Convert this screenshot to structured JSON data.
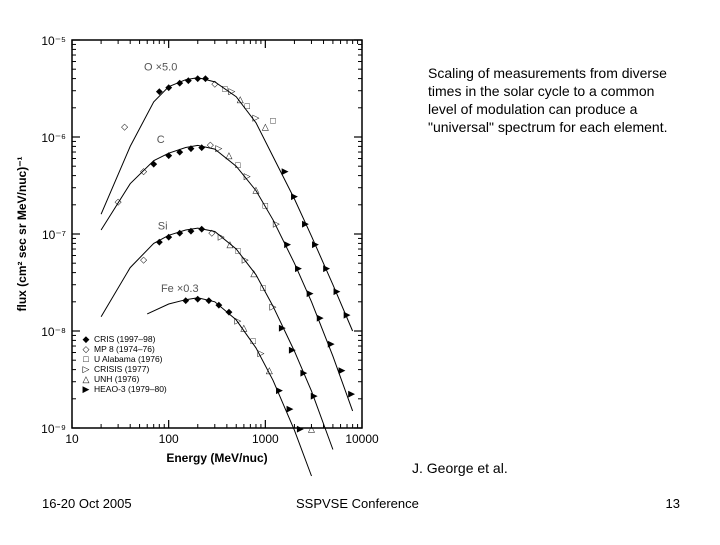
{
  "slide": {
    "caption": "Scaling of measurements from diverse times in the solar cycle to a common level of modulation can produce a \"universal\" spectrum for each element.",
    "credit": "J. George et al.",
    "footer": {
      "date": "16-20 Oct 2005",
      "conference": "SSPVSE Conference",
      "page": "13"
    }
  },
  "chart_data": {
    "type": "scatter",
    "xlabel": "Energy (MeV/nuc)",
    "ylabel": "flux (cm² sec sr MeV/nuc)⁻¹",
    "x_scale": "log",
    "y_scale": "log",
    "xlim": [
      10,
      10000
    ],
    "ylim": [
      1e-09,
      1e-05
    ],
    "x_ticks": [
      "10",
      "100",
      "1000",
      "10000"
    ],
    "y_ticks": [
      "10⁻⁵",
      "10⁻⁶",
      "10⁻⁷",
      "10⁻⁸",
      "10⁻⁹"
    ],
    "legend": {
      "placement": "bottom-left",
      "entries": [
        {
          "symbol": "◆",
          "label": "CRIS (1997–98)"
        },
        {
          "symbol": "◇",
          "label": "MP 8 (1974–76)"
        },
        {
          "symbol": "□",
          "label": "U Alabama (1976)"
        },
        {
          "symbol": "▷",
          "label": "CRISIS (1977)"
        },
        {
          "symbol": "△",
          "label": "UNH (1976)"
        },
        {
          "symbol": "▶",
          "label": "HEAO-3 (1979–80)"
        }
      ]
    },
    "series": [
      {
        "name": "O ×5.0",
        "color": "#000000",
        "curve": [
          [
            20,
            1.6e-07
          ],
          [
            40,
            8e-07
          ],
          [
            70,
            2.3e-06
          ],
          [
            100,
            3.3e-06
          ],
          [
            150,
            3.9e-06
          ],
          [
            200,
            4.1e-06
          ],
          [
            300,
            3.7e-06
          ],
          [
            500,
            2.6e-06
          ],
          [
            800,
            1.4e-06
          ],
          [
            1200,
            6.3e-07
          ],
          [
            2000,
            2.3e-07
          ],
          [
            3000,
            9.5e-08
          ],
          [
            5000,
            3e-08
          ],
          [
            8000,
            1e-08
          ]
        ],
        "points": [
          {
            "x": 35,
            "y": 1.3e-06,
            "m": "◇"
          },
          {
            "x": 80,
            "y": 3e-06,
            "m": "◆"
          },
          {
            "x": 100,
            "y": 3.3e-06,
            "m": "◆"
          },
          {
            "x": 130,
            "y": 3.7e-06,
            "m": "◆"
          },
          {
            "x": 160,
            "y": 3.9e-06,
            "m": "◆"
          },
          {
            "x": 200,
            "y": 4.1e-06,
            "m": "◆"
          },
          {
            "x": 240,
            "y": 4.1e-06,
            "m": "◆"
          },
          {
            "x": 300,
            "y": 3.6e-06,
            "m": "◇"
          },
          {
            "x": 380,
            "y": 3.2e-06,
            "m": "□"
          },
          {
            "x": 450,
            "y": 3e-06,
            "m": "▷"
          },
          {
            "x": 550,
            "y": 2.5e-06,
            "m": "△"
          },
          {
            "x": 650,
            "y": 2.1e-06,
            "m": "□"
          },
          {
            "x": 800,
            "y": 1.6e-06,
            "m": "▷"
          },
          {
            "x": 1000,
            "y": 1.3e-06,
            "m": "△"
          },
          {
            "x": 1200,
            "y": 1.5e-06,
            "m": "□"
          },
          {
            "x": 1600,
            "y": 4.5e-07,
            "m": "▶"
          },
          {
            "x": 2000,
            "y": 2.5e-07,
            "m": "▶"
          },
          {
            "x": 2600,
            "y": 1.3e-07,
            "m": "▶"
          },
          {
            "x": 3300,
            "y": 8e-08,
            "m": "▶"
          },
          {
            "x": 4300,
            "y": 4.5e-08,
            "m": "▶"
          },
          {
            "x": 5500,
            "y": 2.6e-08,
            "m": "▶"
          },
          {
            "x": 7000,
            "y": 1.5e-08,
            "m": "▶"
          }
        ]
      },
      {
        "name": "C",
        "color": "#000000",
        "curve": [
          [
            20,
            1.1e-07
          ],
          [
            40,
            3.3e-07
          ],
          [
            70,
            5.7e-07
          ],
          [
            100,
            6.8e-07
          ],
          [
            150,
            7.8e-07
          ],
          [
            200,
            8.2e-07
          ],
          [
            300,
            7.5e-07
          ],
          [
            500,
            5e-07
          ],
          [
            800,
            2.8e-07
          ],
          [
            1200,
            1.4e-07
          ],
          [
            2000,
            5e-08
          ],
          [
            3000,
            2e-08
          ],
          [
            5000,
            5.5e-09
          ],
          [
            8000,
            1.5e-09
          ]
        ],
        "points": [
          {
            "x": 30,
            "y": 2.2e-07,
            "m": "◇"
          },
          {
            "x": 55,
            "y": 4.5e-07,
            "m": "◇"
          },
          {
            "x": 70,
            "y": 5.4e-07,
            "m": "◆"
          },
          {
            "x": 100,
            "y": 6.6e-07,
            "m": "◆"
          },
          {
            "x": 130,
            "y": 7.2e-07,
            "m": "◆"
          },
          {
            "x": 170,
            "y": 7.8e-07,
            "m": "◆"
          },
          {
            "x": 220,
            "y": 8e-07,
            "m": "◆"
          },
          {
            "x": 270,
            "y": 8.5e-07,
            "m": "◇"
          },
          {
            "x": 330,
            "y": 7.8e-07,
            "m": "▷"
          },
          {
            "x": 420,
            "y": 6.6e-07,
            "m": "△"
          },
          {
            "x": 520,
            "y": 5.2e-07,
            "m": "□"
          },
          {
            "x": 650,
            "y": 4e-07,
            "m": "▷"
          },
          {
            "x": 800,
            "y": 2.9e-07,
            "m": "△"
          },
          {
            "x": 1000,
            "y": 2e-07,
            "m": "□"
          },
          {
            "x": 1300,
            "y": 1.3e-07,
            "m": "▷"
          },
          {
            "x": 1700,
            "y": 8e-08,
            "m": "▶"
          },
          {
            "x": 2200,
            "y": 4.5e-08,
            "m": "▶"
          },
          {
            "x": 2900,
            "y": 2.5e-08,
            "m": "▶"
          },
          {
            "x": 3700,
            "y": 1.4e-08,
            "m": "▶"
          },
          {
            "x": 4800,
            "y": 7.5e-09,
            "m": "▶"
          },
          {
            "x": 6200,
            "y": 4e-09,
            "m": "▶"
          },
          {
            "x": 7800,
            "y": 2.3e-09,
            "m": "▶"
          }
        ]
      },
      {
        "name": "Si",
        "color": "#000000",
        "curve": [
          [
            20,
            1.4e-08
          ],
          [
            40,
            4.5e-08
          ],
          [
            70,
            8e-08
          ],
          [
            100,
            9.7e-08
          ],
          [
            150,
            1.1e-07
          ],
          [
            200,
            1.15e-07
          ],
          [
            300,
            1.06e-07
          ],
          [
            500,
            7e-08
          ],
          [
            800,
            3.8e-08
          ],
          [
            1200,
            1.8e-08
          ],
          [
            2000,
            6.2e-09
          ],
          [
            3000,
            2.4e-09
          ],
          [
            5000,
            6e-10
          ]
        ],
        "points": [
          {
            "x": 55,
            "y": 5.5e-08,
            "m": "◇"
          },
          {
            "x": 80,
            "y": 8.5e-08,
            "m": "◆"
          },
          {
            "x": 100,
            "y": 9.5e-08,
            "m": "◆"
          },
          {
            "x": 130,
            "y": 1.05e-07,
            "m": "◆"
          },
          {
            "x": 170,
            "y": 1.1e-07,
            "m": "◆"
          },
          {
            "x": 220,
            "y": 1.15e-07,
            "m": "◆"
          },
          {
            "x": 280,
            "y": 1.05e-07,
            "m": "◇"
          },
          {
            "x": 350,
            "y": 9.5e-08,
            "m": "▷"
          },
          {
            "x": 430,
            "y": 8e-08,
            "m": "△"
          },
          {
            "x": 520,
            "y": 6.8e-08,
            "m": "□"
          },
          {
            "x": 620,
            "y": 5.5e-08,
            "m": "▷"
          },
          {
            "x": 760,
            "y": 4e-08,
            "m": "△"
          },
          {
            "x": 950,
            "y": 2.8e-08,
            "m": "□"
          },
          {
            "x": 1200,
            "y": 1.8e-08,
            "m": "▷"
          },
          {
            "x": 1500,
            "y": 1.1e-08,
            "m": "▶"
          },
          {
            "x": 1900,
            "y": 6.5e-09,
            "m": "▶"
          },
          {
            "x": 2500,
            "y": 3.8e-09,
            "m": "▶"
          },
          {
            "x": 3200,
            "y": 2.2e-09,
            "m": "▶"
          }
        ]
      },
      {
        "name": "Fe ×0.3",
        "color": "#000000",
        "curve": [
          [
            60,
            1.5e-08
          ],
          [
            100,
            1.9e-08
          ],
          [
            150,
            2.1e-08
          ],
          [
            200,
            2.2e-08
          ],
          [
            300,
            2e-08
          ],
          [
            500,
            1.3e-08
          ],
          [
            800,
            6.7e-09
          ],
          [
            1200,
            3.1e-09
          ],
          [
            2000,
            9.5e-10
          ],
          [
            3000,
            3.2e-10
          ]
        ],
        "points": [
          {
            "x": 150,
            "y": 2.1e-08,
            "m": "◆"
          },
          {
            "x": 200,
            "y": 2.2e-08,
            "m": "◆"
          },
          {
            "x": 260,
            "y": 2.1e-08,
            "m": "◆"
          },
          {
            "x": 330,
            "y": 1.9e-08,
            "m": "◆"
          },
          {
            "x": 420,
            "y": 1.6e-08,
            "m": "◆"
          },
          {
            "x": 520,
            "y": 1.3e-08,
            "m": "▷"
          },
          {
            "x": 600,
            "y": 1.1e-08,
            "m": "△"
          },
          {
            "x": 750,
            "y": 8e-09,
            "m": "□"
          },
          {
            "x": 900,
            "y": 6e-09,
            "m": "▷"
          },
          {
            "x": 1100,
            "y": 4e-09,
            "m": "△"
          },
          {
            "x": 1400,
            "y": 2.5e-09,
            "m": "▶"
          },
          {
            "x": 1800,
            "y": 1.6e-09,
            "m": "▶"
          },
          {
            "x": 2300,
            "y": 1e-09,
            "m": "▶"
          },
          {
            "x": 3000,
            "y": 1e-09,
            "m": "△"
          }
        ]
      }
    ]
  }
}
